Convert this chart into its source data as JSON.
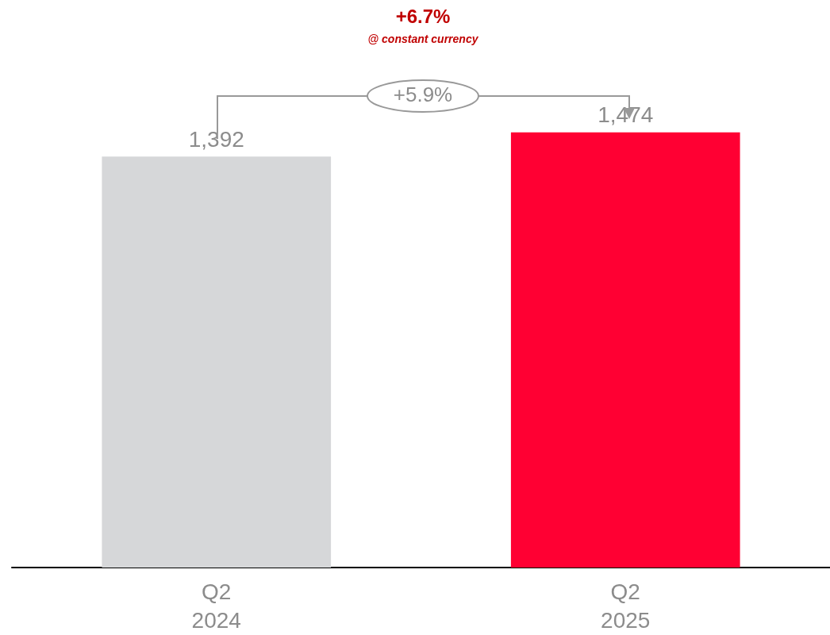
{
  "chart_data": {
    "type": "bar",
    "categories": [
      "Q2\n2024",
      "Q2\n2025"
    ],
    "values": [
      1392,
      1474
    ],
    "value_labels": [
      "1,392",
      "1,474"
    ],
    "colors": [
      "#d6d7d9",
      "#ff0033"
    ],
    "annotations": [
      "+6.7%",
      "@ constant currency",
      "+5.9%"
    ]
  }
}
